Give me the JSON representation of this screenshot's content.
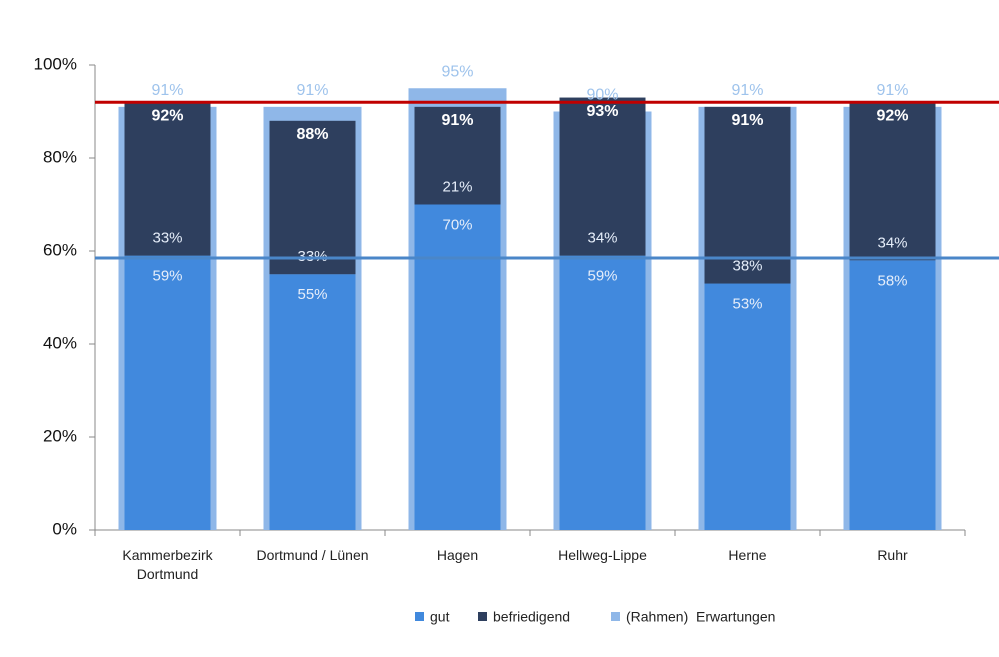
{
  "chart_data": {
    "type": "bar",
    "categories": [
      "Kammerbezirk Dortmund",
      "Dortmund / Lünen",
      "Hagen",
      "Hellweg-Lippe",
      "Herne",
      "Ruhr"
    ],
    "series": [
      {
        "name": "gut",
        "color": "#4189dd",
        "values": [
          59,
          55,
          70,
          59,
          53,
          58
        ],
        "value_labels": [
          "59%",
          "55%",
          "70%",
          "59%",
          "53%",
          "58%"
        ]
      },
      {
        "name": "befriedigend",
        "color": "#2e3f5e",
        "values": [
          33,
          33,
          21,
          34,
          38,
          34
        ],
        "value_labels": [
          "33%",
          "33%",
          "21%",
          "34%",
          "38%",
          "34%"
        ],
        "totals": [
          92,
          88,
          91,
          93,
          91,
          92
        ],
        "total_labels": [
          "92%",
          "88%",
          "91%",
          "93%",
          "91%",
          "92%"
        ]
      },
      {
        "name": "(Rahmen)  Erwartungen",
        "color": "#8fb7e8",
        "values": [
          91,
          91,
          95,
          90,
          91,
          91
        ],
        "value_labels": [
          "91%",
          "91%",
          "95%",
          "90%",
          "91%",
          "91%"
        ]
      }
    ],
    "reference_lines": [
      {
        "value": 92,
        "color": "#c00000"
      },
      {
        "value": 58.5,
        "color": "#4a86c8"
      }
    ],
    "ylim": [
      0,
      100
    ],
    "yticks": [
      {
        "value": 0,
        "label": "0%"
      },
      {
        "value": 20,
        "label": "20%"
      },
      {
        "value": 40,
        "label": "40%"
      },
      {
        "value": 60,
        "label": "60%"
      },
      {
        "value": 80,
        "label": "80%"
      },
      {
        "value": 100,
        "label": "100%"
      }
    ],
    "legend": "bottom"
  }
}
